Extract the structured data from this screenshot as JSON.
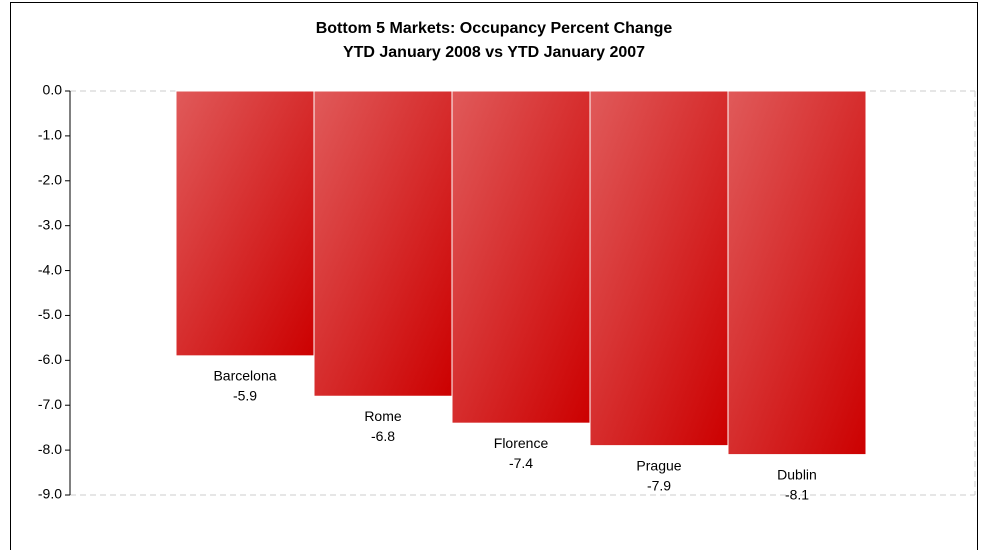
{
  "chart_data": {
    "type": "bar",
    "title": "Bottom 5 Markets: Occupancy Percent Change",
    "subtitle": "YTD January 2008 vs YTD January 2007",
    "categories": [
      "Barcelona",
      "Rome",
      "Florence",
      "Prague",
      "Dublin"
    ],
    "values": [
      -5.9,
      -6.8,
      -7.4,
      -7.9,
      -8.1
    ],
    "color": "#cc0000",
    "ylim": [
      -9,
      0
    ],
    "yticks": [
      {
        "value": 0,
        "label": "0.0"
      },
      {
        "value": -1,
        "label": "-1.0"
      },
      {
        "value": -2,
        "label": "-2.0"
      },
      {
        "value": -3,
        "label": "-3.0"
      },
      {
        "value": -4,
        "label": "-4.0"
      },
      {
        "value": -5,
        "label": "-5.0"
      },
      {
        "value": -6,
        "label": "-6.0"
      },
      {
        "value": -7,
        "label": "-7.0"
      },
      {
        "value": -8,
        "label": "-8.0"
      },
      {
        "value": -9,
        "label": "-9.0"
      }
    ],
    "grid": false
  }
}
